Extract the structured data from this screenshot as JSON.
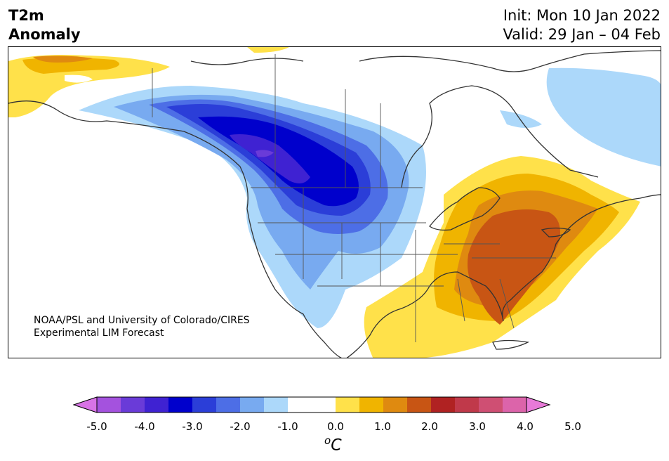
{
  "title": {
    "variable": "T2m",
    "subtitle": "Anomaly",
    "init": "Init: Mon 10 Jan 2022",
    "valid": "Valid: 29 Jan – 04 Feb"
  },
  "credit": {
    "line1": "NOAA/PSL and University of Colorado/CIRES",
    "line2": "Experimental LIM Forecast"
  },
  "colorbar": {
    "ticks": [
      "-5.0",
      "-4.0",
      "-3.0",
      "-2.0",
      "-1.0",
      "0.0",
      "1.0",
      "2.0",
      "3.0",
      "4.0",
      "5.0"
    ],
    "unit_base": "C",
    "unit_sup": "o",
    "colors": [
      "#d873e6",
      "#a452de",
      "#6a3bd8",
      "#3f22d2",
      "#0000cc",
      "#2b3ed8",
      "#4d6ee6",
      "#78aaf0",
      "#acd8fa",
      "#ffffff",
      "#ffffff",
      "#ffe14a",
      "#f0b400",
      "#df8a10",
      "#c85514",
      "#b02222",
      "#c0394a",
      "#cf4f73",
      "#dc64aa",
      "#e87ad8"
    ]
  },
  "map_layers": {
    "warm_east": "#c85514",
    "cold_west": "#0000cc"
  }
}
